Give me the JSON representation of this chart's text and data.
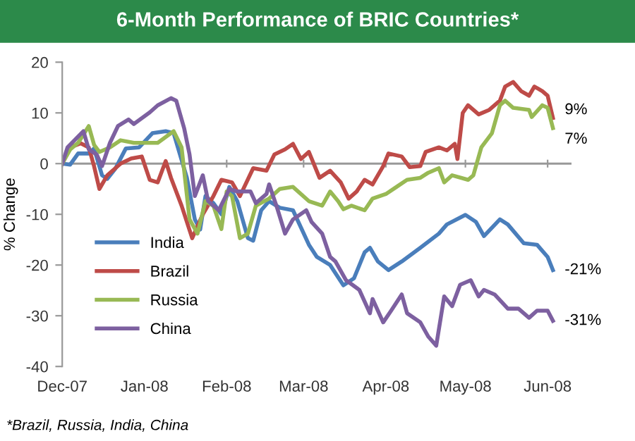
{
  "chart_data": {
    "type": "line",
    "title": "6-Month Performance of BRIC Countries*",
    "ylabel": "% Change",
    "annotations": [
      {
        "text": "9%",
        "x": "2008-06-03",
        "y": 9
      },
      {
        "text": "7%",
        "x": "2008-06-03",
        "y": 7
      },
      {
        "text": "-21%",
        "x": "2008-06-03",
        "y": -21
      },
      {
        "text": "-31%",
        "x": "2008-06-03",
        "y": -31
      },
      "*Brazil, Russia, India, China"
    ],
    "xlim": [
      "2007-12-01",
      "2008-06-10"
    ],
    "xticks": [
      {
        "value": "2007-12-01",
        "label": "Dec-07"
      },
      {
        "value": "2008-01-01",
        "label": "Jan-08"
      },
      {
        "value": "2008-02-01",
        "label": "Feb-08"
      },
      {
        "value": "2008-03-01",
        "label": "Mar-08"
      },
      {
        "value": "2008-04-01",
        "label": "Apr-08"
      },
      {
        "value": "2008-05-01",
        "label": "May-08"
      },
      {
        "value": "2008-06-01",
        "label": "Jun-08"
      }
    ],
    "ylim": [
      -40,
      20
    ],
    "yticks": [
      -40,
      -30,
      -20,
      -10,
      0,
      10,
      20
    ],
    "ref_lines": [
      {
        "axis": "y",
        "value": 0,
        "color": "#999999"
      }
    ],
    "legend": "bottom left",
    "line_style": "solid",
    "marker": "none",
    "series": [
      {
        "name": "India",
        "color": "#4a7ebb",
        "x": [
          "2007-12-01",
          "2007-12-04",
          "2007-12-07",
          "2007-12-11",
          "2007-12-13",
          "2007-12-16",
          "2007-12-18",
          "2007-12-21",
          "2007-12-25",
          "2007-12-30",
          "2008-01-04",
          "2008-01-09",
          "2008-01-12",
          "2008-01-17",
          "2008-01-20",
          "2008-01-22",
          "2008-01-24",
          "2008-01-27",
          "2008-01-30",
          "2008-02-02",
          "2008-02-05",
          "2008-02-09",
          "2008-02-11",
          "2008-02-14",
          "2008-02-17",
          "2008-02-21",
          "2008-02-26",
          "2008-03-03",
          "2008-03-06",
          "2008-03-11",
          "2008-03-16",
          "2008-03-20",
          "2008-03-24",
          "2008-03-26",
          "2008-03-29",
          "2008-04-02",
          "2008-04-07",
          "2008-04-14",
          "2008-04-21",
          "2008-04-24",
          "2008-05-01",
          "2008-05-05",
          "2008-05-08",
          "2008-05-14",
          "2008-05-17",
          "2008-05-23",
          "2008-05-28",
          "2008-06-01",
          "2008-06-03"
        ],
        "values": [
          0,
          -0.2,
          2,
          2,
          3,
          -2.3,
          -3,
          -1,
          3,
          3.2,
          6,
          6.4,
          6,
          -2.8,
          -11,
          -13,
          -6.4,
          -7.8,
          -10,
          -4.6,
          -7.4,
          -14.7,
          -15.2,
          -9.2,
          -7.4,
          -8.7,
          -9.2,
          -16,
          -18.4,
          -20,
          -24,
          -22.6,
          -17.5,
          -16.6,
          -19.3,
          -21,
          -19.3,
          -16.6,
          -13.8,
          -12,
          -10.1,
          -11.5,
          -14.3,
          -11,
          -12,
          -15.7,
          -16,
          -18.4,
          -21
        ]
      },
      {
        "name": "Brazil",
        "color": "#be4b48",
        "x": [
          "2007-12-01",
          "2007-12-04",
          "2007-12-08",
          "2007-12-11",
          "2007-12-13",
          "2007-12-15",
          "2007-12-18",
          "2007-12-23",
          "2007-12-27",
          "2007-12-31",
          "2008-01-03",
          "2008-01-06",
          "2008-01-09",
          "2008-01-11",
          "2008-01-15",
          "2008-01-19",
          "2008-01-23",
          "2008-01-27",
          "2008-01-30",
          "2008-02-03",
          "2008-02-06",
          "2008-02-11",
          "2008-02-16",
          "2008-02-19",
          "2008-02-23",
          "2008-02-26",
          "2008-02-29",
          "2008-03-03",
          "2008-03-07",
          "2008-03-11",
          "2008-03-15",
          "2008-03-18",
          "2008-03-21",
          "2008-03-24",
          "2008-03-27",
          "2008-03-31",
          "2008-04-02",
          "2008-04-07",
          "2008-04-10",
          "2008-04-14",
          "2008-04-16",
          "2008-04-21",
          "2008-04-24",
          "2008-04-27",
          "2008-04-28",
          "2008-04-30",
          "2008-05-02",
          "2008-05-06",
          "2008-05-10",
          "2008-05-14",
          "2008-05-16",
          "2008-05-19",
          "2008-05-22",
          "2008-05-25",
          "2008-05-27",
          "2008-05-30",
          "2008-06-01",
          "2008-06-03"
        ],
        "values": [
          0,
          3.2,
          4,
          3.2,
          -0.5,
          -5,
          -2.3,
          0,
          1,
          1.4,
          -3.2,
          -3.7,
          0.5,
          -2.8,
          -8.3,
          -14.7,
          -10,
          -6.4,
          -3.2,
          -3.7,
          -6.4,
          -0.9,
          -1.4,
          1.8,
          2.8,
          3.9,
          0.9,
          2.3,
          -2.8,
          -1.4,
          -3.7,
          -6.9,
          -5.5,
          -3.2,
          -4.1,
          -0.5,
          2,
          1.4,
          -0.7,
          -0.5,
          2.3,
          3.2,
          2.6,
          3.9,
          0.9,
          10,
          11.5,
          9.7,
          10.6,
          12.4,
          15.2,
          16.1,
          14.3,
          13.4,
          15.2,
          14.3,
          13.4,
          9
        ]
      },
      {
        "name": "Russia",
        "color": "#98b954",
        "x": [
          "2007-12-01",
          "2007-12-04",
          "2007-12-07",
          "2007-12-11",
          "2007-12-13",
          "2007-12-15",
          "2007-12-19",
          "2007-12-23",
          "2007-12-28",
          "2008-01-06",
          "2008-01-12",
          "2008-01-15",
          "2008-01-18",
          "2008-01-21",
          "2008-01-24",
          "2008-01-27",
          "2008-01-30",
          "2008-02-01",
          "2008-02-03",
          "2008-02-06",
          "2008-02-09",
          "2008-02-12",
          "2008-02-17",
          "2008-02-21",
          "2008-02-26",
          "2008-03-03",
          "2008-03-08",
          "2008-03-11",
          "2008-03-14",
          "2008-03-16",
          "2008-03-19",
          "2008-03-24",
          "2008-03-27",
          "2008-04-01",
          "2008-04-05",
          "2008-04-09",
          "2008-04-14",
          "2008-04-17",
          "2008-04-21",
          "2008-04-23",
          "2008-04-26",
          "2008-05-02",
          "2008-05-04",
          "2008-05-07",
          "2008-05-11",
          "2008-05-14",
          "2008-05-16",
          "2008-05-19",
          "2008-05-25",
          "2008-05-26",
          "2008-05-30",
          "2008-06-01",
          "2008-06-03"
        ],
        "values": [
          0,
          2.8,
          4.1,
          7.4,
          3.7,
          2.3,
          3.2,
          4.6,
          4.1,
          4.1,
          6.4,
          3.2,
          -11,
          -13.8,
          -7.4,
          -8.3,
          -12.9,
          -5.5,
          -6.4,
          -14.7,
          -13.8,
          -8.3,
          -6.9,
          -5,
          -4.6,
          -7.4,
          -8.3,
          -5.5,
          -7.4,
          -9,
          -8.3,
          -9.2,
          -6.9,
          -6,
          -4.6,
          -3.2,
          -2.8,
          -1.8,
          -0.9,
          -3.7,
          -2.3,
          -3.2,
          -2.3,
          3.2,
          6,
          11.5,
          12.4,
          11,
          10.6,
          9.2,
          11.5,
          11,
          7
        ]
      },
      {
        "name": "China",
        "color": "#7d60a0",
        "x": [
          "2007-12-01",
          "2007-12-03",
          "2007-12-09",
          "2007-12-11",
          "2007-12-14",
          "2007-12-16",
          "2007-12-19",
          "2007-12-22",
          "2007-12-26",
          "2007-12-28",
          "2008-01-03",
          "2008-01-06",
          "2008-01-11",
          "2008-01-13",
          "2008-01-16",
          "2008-01-18",
          "2008-01-20",
          "2008-01-23",
          "2008-01-25",
          "2008-01-29",
          "2008-02-02",
          "2008-02-05",
          "2008-02-10",
          "2008-02-12",
          "2008-02-16",
          "2008-02-17",
          "2008-02-20",
          "2008-02-23",
          "2008-02-26",
          "2008-03-02",
          "2008-03-04",
          "2008-03-08",
          "2008-03-11",
          "2008-03-13",
          "2008-03-17",
          "2008-03-22",
          "2008-03-26",
          "2008-03-27",
          "2008-03-31",
          "2008-04-03",
          "2008-04-07",
          "2008-04-09",
          "2008-04-14",
          "2008-04-17",
          "2008-04-20",
          "2008-04-23",
          "2008-04-26",
          "2008-04-29",
          "2008-05-03",
          "2008-05-06",
          "2008-05-08",
          "2008-05-12",
          "2008-05-17",
          "2008-05-21",
          "2008-05-25",
          "2008-05-28",
          "2008-06-01",
          "2008-06-03"
        ],
        "values": [
          0,
          3.2,
          6.4,
          2.8,
          1.8,
          -0.5,
          4.1,
          7.4,
          8.7,
          7.8,
          10.1,
          11.5,
          12.9,
          12.4,
          6.9,
          1.8,
          -6.4,
          -2.3,
          -7.4,
          -9.2,
          -5,
          -5.5,
          -5.5,
          -7.8,
          -6,
          -4.1,
          -8.7,
          -13.8,
          -11,
          -9.2,
          -11.5,
          -13.8,
          -18.4,
          -19.3,
          -23,
          -24.9,
          -29.5,
          -26.7,
          -31.3,
          -29,
          -25.8,
          -29.5,
          -31.3,
          -34.1,
          -35.9,
          -26.2,
          -28.1,
          -23.9,
          -23,
          -26.2,
          -24.9,
          -25.8,
          -28.6,
          -28.6,
          -30.4,
          -29,
          -29,
          -31
        ]
      }
    ]
  }
}
